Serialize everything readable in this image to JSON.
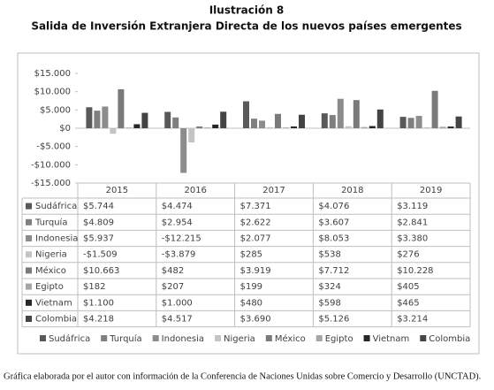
{
  "chart_data": {
    "type": "bar",
    "figure_label": "Ilustración 8",
    "title": "Salida de Inversión Extranjera Directa de los nuevos países emergentes",
    "source": "Gráfica elaborada por el autor con información de la Conferencia de Naciones Unidas sobre Comercio y Desarrollo (UNCTAD).",
    "categories": [
      "2015",
      "2016",
      "2017",
      "2018",
      "2019"
    ],
    "series": [
      {
        "name": "Sudáfrica",
        "color": "#595959",
        "values": [
          5744,
          4474,
          7371,
          4076,
          3119
        ],
        "value_labels": [
          "$5.744",
          "$4.474",
          "$7.371",
          "$4.076",
          "$3.119"
        ]
      },
      {
        "name": "Turquía",
        "color": "#7f7f7f",
        "values": [
          4809,
          2954,
          2622,
          3607,
          2841
        ],
        "value_labels": [
          "$4.809",
          "$2.954",
          "$2.622",
          "$3.607",
          "$2.841"
        ]
      },
      {
        "name": "Indonesia",
        "color": "#8c8c8c",
        "values": [
          5937,
          -12215,
          2077,
          8053,
          3380
        ],
        "value_labels": [
          "$5.937",
          "-$12.215",
          "$2.077",
          "$8.053",
          "$3.380"
        ]
      },
      {
        "name": "Nigeria",
        "color": "#c4c4c4",
        "values": [
          -1509,
          -3879,
          285,
          538,
          276
        ],
        "value_labels": [
          "-$1.509",
          "-$3.879",
          "$285",
          "$538",
          "$276"
        ]
      },
      {
        "name": "México",
        "color": "#7a7a7a",
        "values": [
          10663,
          482,
          3919,
          7712,
          10228
        ],
        "value_labels": [
          "$10.663",
          "$482",
          "$3.919",
          "$7.712",
          "$10.228"
        ]
      },
      {
        "name": "Egipto",
        "color": "#a6a6a6",
        "values": [
          182,
          207,
          199,
          324,
          405
        ],
        "value_labels": [
          "$182",
          "$207",
          "$199",
          "$324",
          "$405"
        ]
      },
      {
        "name": "Vietnam",
        "color": "#262626",
        "values": [
          1100,
          1000,
          480,
          598,
          465
        ],
        "value_labels": [
          "$1.100",
          "$1.000",
          "$480",
          "$598",
          "$465"
        ]
      },
      {
        "name": "Colombia",
        "color": "#444444",
        "values": [
          4218,
          4517,
          3690,
          5126,
          3214
        ],
        "value_labels": [
          "$4.218",
          "$4.517",
          "$3.690",
          "$5.126",
          "$3.214"
        ]
      }
    ],
    "ylim": [
      -15000,
      15000
    ],
    "yticks": [
      {
        "value": 15000,
        "label": "$15.000"
      },
      {
        "value": 10000,
        "label": "$10.000"
      },
      {
        "value": 5000,
        "label": "$5.000"
      },
      {
        "value": 0,
        "label": "$0"
      },
      {
        "value": -5000,
        "label": "-$5.000"
      },
      {
        "value": -10000,
        "label": "-$10.000"
      },
      {
        "value": -15000,
        "label": "-$15.000"
      }
    ],
    "grid": false
  }
}
